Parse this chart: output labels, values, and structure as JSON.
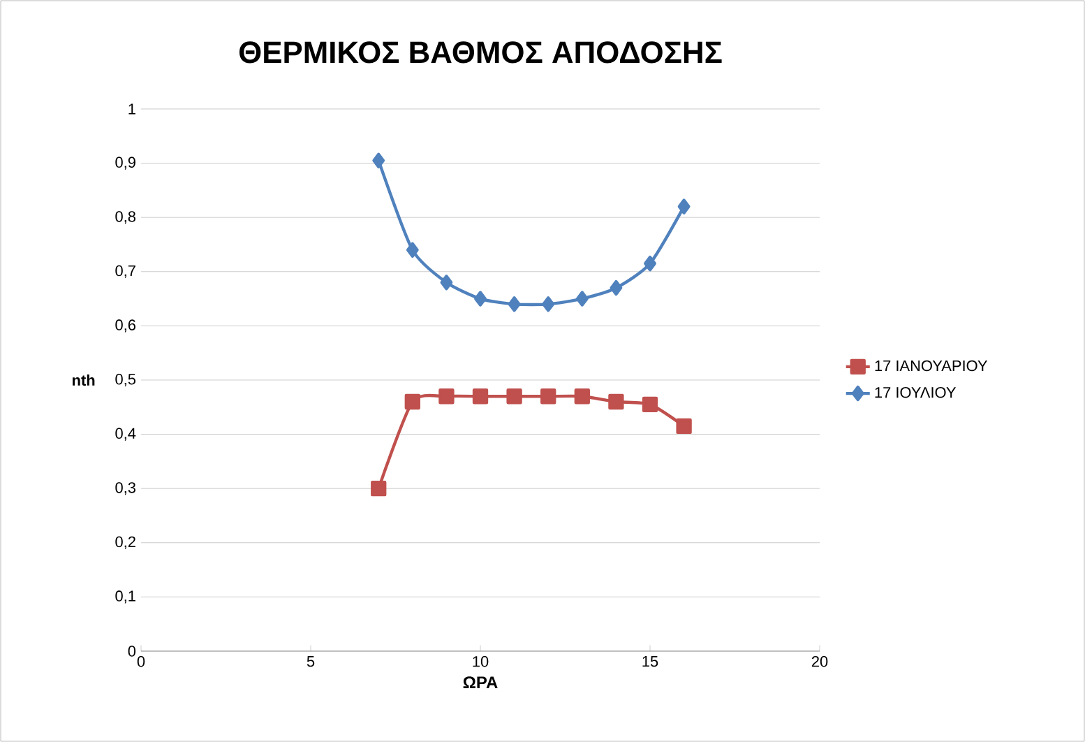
{
  "chart_data": {
    "type": "line",
    "title": "ΘΕΡΜΙΚΟΣ ΒΑΘΜΟΣ ΑΠΟΔΟΣΗΣ",
    "xlabel": "ΩΡΑ",
    "ylabel": "nth",
    "x": [
      7,
      8,
      9,
      10,
      11,
      12,
      13,
      14,
      15,
      16
    ],
    "series": [
      {
        "name": "17 ΙΑΝΟΥΑΡΙΟΥ",
        "color": "#c0504d",
        "marker": "square",
        "values": [
          0.3,
          0.46,
          0.47,
          0.47,
          0.47,
          0.47,
          0.47,
          0.46,
          0.455,
          0.415
        ]
      },
      {
        "name": "17 ΙΟΥΛΙΟΥ",
        "color": "#4f81bd",
        "marker": "diamond",
        "values": [
          0.905,
          0.74,
          0.68,
          0.65,
          0.64,
          0.64,
          0.65,
          0.67,
          0.715,
          0.82
        ]
      }
    ],
    "xlim": [
      0,
      20
    ],
    "xticks": [
      0,
      5,
      10,
      15,
      20
    ],
    "ylim": [
      0,
      1
    ],
    "yticks": [
      0,
      {
        "value": 0.1,
        "label": "0,1"
      },
      {
        "value": 0.2,
        "label": "0,2"
      },
      {
        "value": 0.3,
        "label": "0,3"
      },
      {
        "value": 0.4,
        "label": "0,4"
      },
      {
        "value": 0.5,
        "label": "0,5"
      },
      {
        "value": 0.6,
        "label": "0,6"
      },
      {
        "value": 0.7,
        "label": "0,7"
      },
      {
        "value": 0.8,
        "label": "0,8"
      },
      {
        "value": 0.9,
        "label": "0,9"
      },
      1
    ],
    "grid": "y",
    "legend": "right"
  }
}
